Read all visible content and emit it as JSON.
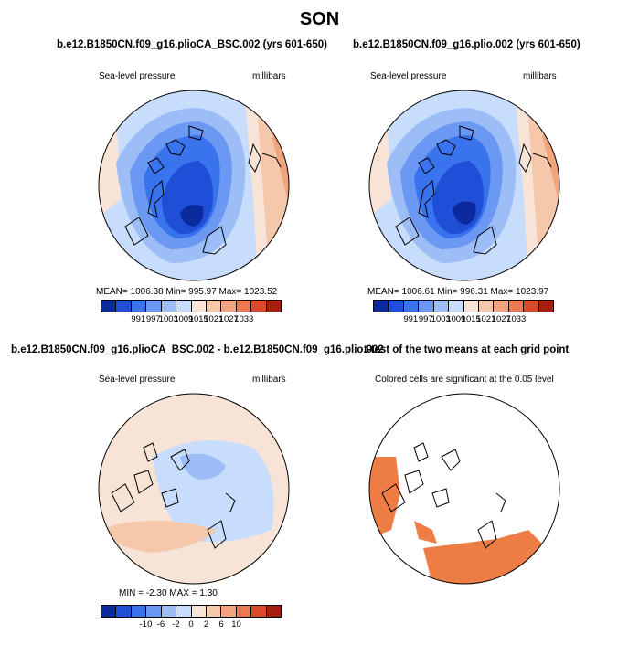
{
  "season": "SON",
  "panels": [
    {
      "title": "b.e12.B1850CN.f09_g16.plioCA_BSC.002 (yrs 601-650)",
      "left_label": "Sea-level pressure",
      "right_label": "millibars",
      "stats": {
        "mean": "1006.38",
        "min": "995.97",
        "max": "1023.52"
      },
      "stats_text": "MEAN=  1006.38    Min=  995.97    Max=  1023.52",
      "colorbar": {
        "colors": [
          "#0a2a9e",
          "#1f4fd6",
          "#3a73ee",
          "#6a98f2",
          "#9dbdf7",
          "#c8dcfb",
          "#f7e4d6",
          "#f5c7ab",
          "#f2a47f",
          "#ec7a50",
          "#d84a2a",
          "#a3200f"
        ],
        "tick_labels": [
          "991",
          "997",
          "1003",
          "1009",
          "1015",
          "1021",
          "1027",
          "1033"
        ]
      }
    },
    {
      "title": "b.e12.B1850CN.f09_g16.plio.002 (yrs 601-650)",
      "left_label": "Sea-level pressure",
      "right_label": "millibars",
      "stats": {
        "mean": "1006.61",
        "min": "996.31",
        "max": "1023.97"
      },
      "stats_text": "MEAN=  1006.61    Min=  996.31    Max=  1023.97",
      "colorbar": {
        "colors": [
          "#0a2a9e",
          "#1f4fd6",
          "#3a73ee",
          "#6a98f2",
          "#9dbdf7",
          "#c8dcfb",
          "#f7e4d6",
          "#f5c7ab",
          "#f2a47f",
          "#ec7a50",
          "#d84a2a",
          "#a3200f"
        ],
        "tick_labels": [
          "991",
          "997",
          "1003",
          "1009",
          "1015",
          "1021",
          "1027",
          "1033"
        ]
      }
    },
    {
      "title": "b.e12.B1850CN.f09_g16.plioCA_BSC.002 - b.e12.B1850CN.f09_g16.plio.002",
      "left_label": "Sea-level pressure",
      "right_label": "millibars",
      "stats": {
        "min": "-2.30",
        "max": "1.30"
      },
      "stats_text": "MIN =   -2.30  MAX =    1.30",
      "colorbar": {
        "colors": [
          "#0a2a9e",
          "#1f4fd6",
          "#3a73ee",
          "#6a98f2",
          "#9dbdf7",
          "#c8dcfb",
          "#f7e4d6",
          "#f5c7ab",
          "#f2a47f",
          "#ec7a50",
          "#d84a2a",
          "#a3200f"
        ],
        "tick_labels": [
          "-10",
          "-6",
          "-2",
          "0",
          "2",
          "6",
          "10"
        ]
      }
    },
    {
      "title": "t-test of the two means at each grid point",
      "left_label": "Colored cells are significant at the 0.05 level",
      "highlight_color": "#ee7d45"
    }
  ]
}
